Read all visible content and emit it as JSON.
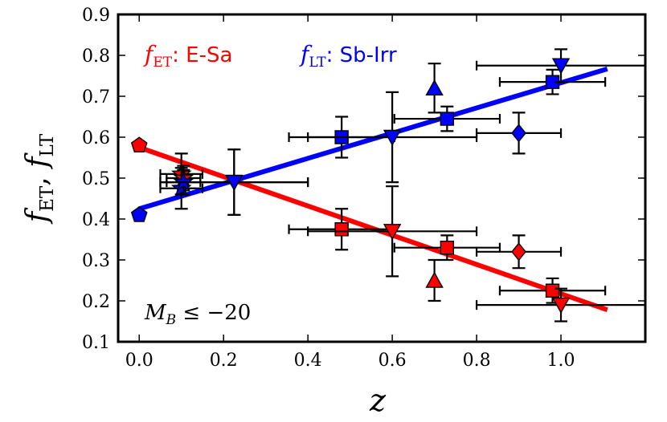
{
  "chart_data": {
    "type": "scatter",
    "xlabel": "z",
    "ylabel_parts": {
      "f": "f",
      "sub_et": "ET",
      "sep": ", ",
      "sub_lt": "LT"
    },
    "xlim": [
      -0.05,
      1.2
    ],
    "ylim": [
      0.1,
      0.9
    ],
    "xticks": [
      "0.0",
      "0.2",
      "0.4",
      "0.6",
      "0.8",
      "1.0"
    ],
    "xtick_values": [
      0.0,
      0.2,
      0.4,
      0.6,
      0.8,
      1.0
    ],
    "yticks": [
      "0.1",
      "0.2",
      "0.3",
      "0.4",
      "0.5",
      "0.6",
      "0.7",
      "0.8",
      "0.9"
    ],
    "ytick_values": [
      0.1,
      0.2,
      0.3,
      0.4,
      0.5,
      0.6,
      0.7,
      0.8,
      0.9
    ],
    "legend": {
      "et": {
        "sym": "f",
        "sub": "ET",
        "label": ": E-Sa",
        "color": "#ff0000"
      },
      "lt": {
        "sym": "f",
        "sub": "LT",
        "label": ": Sb-Irr",
        "color": "#0000ff"
      }
    },
    "annotation": {
      "sym": "M",
      "sub": "B",
      "rest": " ≤ −20"
    },
    "fit_lines": [
      {
        "name": "ET fit",
        "color": "#ff0000",
        "x": [
          0.0,
          1.11
        ],
        "y": [
          0.575,
          0.178
        ]
      },
      {
        "name": "LT fit",
        "color": "#0000ff",
        "x": [
          0.0,
          1.11
        ],
        "y": [
          0.425,
          0.767
        ]
      }
    ],
    "series": [
      {
        "name": "f_ET: E-Sa",
        "color": "#ff0000",
        "points": [
          {
            "x": 0.0,
            "y": 0.58,
            "marker": "pentagon"
          },
          {
            "x": 0.1,
            "y": 0.51,
            "marker": "star",
            "xerr": 0.05,
            "yerr": 0.05
          },
          {
            "x": 0.105,
            "y": 0.5,
            "marker": "star",
            "xerr": 0.04,
            "yerr": 0.03
          },
          {
            "x": 0.225,
            "y": 0.49,
            "marker": "triangle-down",
            "xerr": 0.175,
            "yerr": 0.08
          },
          {
            "x": 0.48,
            "y": 0.375,
            "marker": "square",
            "xerr": 0.125,
            "yerr": 0.05
          },
          {
            "x": 0.6,
            "y": 0.37,
            "marker": "triangle-down",
            "xerr": 0.2,
            "yerr": 0.11
          },
          {
            "x": 0.7,
            "y": 0.25,
            "marker": "triangle-up",
            "yerr": 0.05
          },
          {
            "x": 0.73,
            "y": 0.33,
            "marker": "square",
            "xerr": 0.125,
            "yerr": 0.03
          },
          {
            "x": 0.9,
            "y": 0.32,
            "marker": "diamond",
            "xerr": 0.1,
            "yerr": 0.04
          },
          {
            "x": 0.98,
            "y": 0.225,
            "marker": "square",
            "xerr": 0.125,
            "yerr": 0.03
          },
          {
            "x": 1.0,
            "y": 0.19,
            "marker": "triangle-down",
            "xerr": 0.2,
            "yerr": 0.04
          }
        ]
      },
      {
        "name": "f_LT: Sb-Irr",
        "color": "#0000ff",
        "points": [
          {
            "x": 0.0,
            "y": 0.41,
            "marker": "pentagon"
          },
          {
            "x": 0.1,
            "y": 0.475,
            "marker": "star",
            "xerr": 0.05,
            "yerr": 0.05
          },
          {
            "x": 0.105,
            "y": 0.49,
            "marker": "star",
            "xerr": 0.04,
            "yerr": 0.03
          },
          {
            "x": 0.225,
            "y": 0.49,
            "marker": "triangle-down",
            "xerr": 0.175,
            "yerr": 0.08
          },
          {
            "x": 0.48,
            "y": 0.6,
            "marker": "square",
            "xerr": 0.125,
            "yerr": 0.05
          },
          {
            "x": 0.6,
            "y": 0.6,
            "marker": "triangle-down",
            "xerr": 0.2,
            "yerr": 0.11
          },
          {
            "x": 0.7,
            "y": 0.72,
            "marker": "triangle-up",
            "yerr": 0.06
          },
          {
            "x": 0.73,
            "y": 0.645,
            "marker": "square",
            "xerr": 0.125,
            "yerr": 0.03
          },
          {
            "x": 0.9,
            "y": 0.61,
            "marker": "diamond",
            "xerr": 0.1,
            "yerr": 0.05
          },
          {
            "x": 0.98,
            "y": 0.735,
            "marker": "square",
            "xerr": 0.125,
            "yerr": 0.03
          },
          {
            "x": 1.0,
            "y": 0.775,
            "marker": "triangle-down",
            "xerr": 0.2,
            "yerr": 0.04
          }
        ]
      }
    ]
  }
}
